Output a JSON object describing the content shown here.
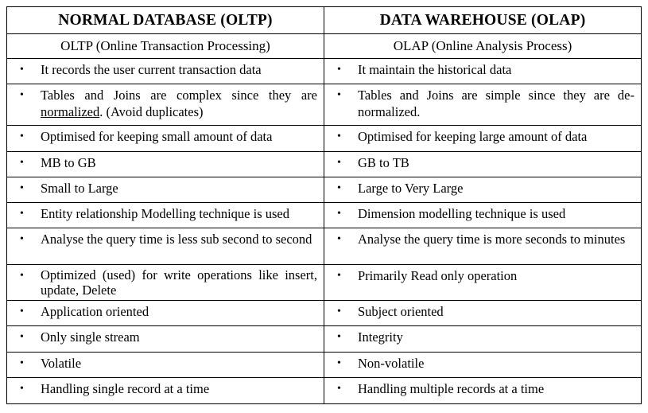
{
  "headers": {
    "left": "NORMAL DATABASE (OLTP)",
    "right": "DATA WAREHOUSE (OLAP)"
  },
  "subheaders": {
    "left": "OLTP (Online Transaction Processing)",
    "right": "OLAP (Online Analysis Process)"
  },
  "bullet_symbol": "•",
  "rows": [
    {
      "left": "It records the user current transaction data",
      "right": "It maintain the historical data"
    },
    {
      "left_pre": "Tables and Joins are complex since they are ",
      "left_underlined": "normalized",
      "left_post": ". (Avoid duplicates)",
      "right": "Tables and Joins are simple since they are de-normalized."
    },
    {
      "left": "Optimised for keeping small amount of data",
      "right": "Optimised for keeping large amount of data"
    },
    {
      "left": "MB to GB",
      "right": "GB to TB"
    },
    {
      "left": "Small to Large",
      "right": "Large to Very Large"
    },
    {
      "left": "Entity relationship Modelling technique is used",
      "right": "Dimension modelling technique is used"
    },
    {
      "left": "Analyse the query time is less sub second to second",
      "right": "Analyse the query  time is more seconds to minutes"
    },
    {
      "left": "Optimized (used) for write operations like insert, update, Delete",
      "right": "Primarily Read only operation"
    },
    {
      "left": "Application oriented",
      "right": "Subject oriented"
    },
    {
      "left": "Only single stream",
      "right": "Integrity"
    },
    {
      "left": "Volatile",
      "right": "Non-volatile"
    },
    {
      "left": "Handling single record at a time",
      "right": "Handling multiple records at a time"
    }
  ]
}
